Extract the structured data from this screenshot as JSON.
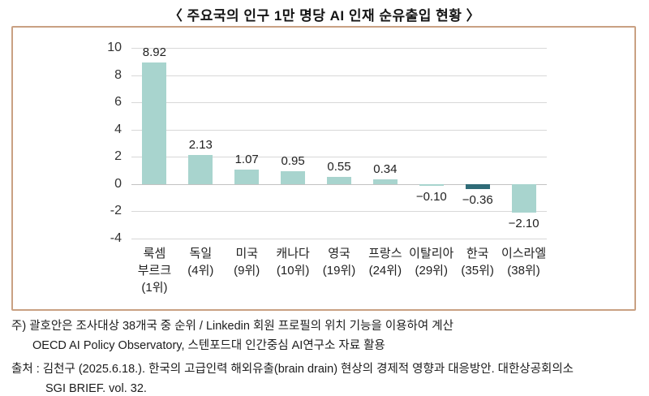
{
  "title": "〈 주요국의 인구 1만 명당 AI 인재 순유출입 현황 〉",
  "chart_data": {
    "type": "bar",
    "title": "주요국의 인구 1만 명당 AI 인재 순유출입 현황",
    "categories": [
      {
        "name": "룩셈부르크",
        "rank": "(1위)",
        "lines": [
          "룩셈",
          "부르크",
          "(1위)"
        ]
      },
      {
        "name": "독일",
        "rank": "(4위)",
        "lines": [
          "독일",
          "(4위)"
        ]
      },
      {
        "name": "미국",
        "rank": "(9위)",
        "lines": [
          "미국",
          "(9위)"
        ]
      },
      {
        "name": "캐나다",
        "rank": "(10위)",
        "lines": [
          "캐나다",
          "(10위)"
        ]
      },
      {
        "name": "영국",
        "rank": "(19위)",
        "lines": [
          "영국",
          "(19위)"
        ]
      },
      {
        "name": "프랑스",
        "rank": "(24위)",
        "lines": [
          "프랑스",
          "(24위)"
        ]
      },
      {
        "name": "이탈리아",
        "rank": "(29위)",
        "lines": [
          "이탈리아",
          "(29위)"
        ]
      },
      {
        "name": "한국",
        "rank": "(35위)",
        "lines": [
          "한국",
          "(35위)"
        ]
      },
      {
        "name": "이스라엘",
        "rank": "(38위)",
        "lines": [
          "이스라엘",
          "(38위)"
        ]
      }
    ],
    "values": [
      8.92,
      2.13,
      1.07,
      0.95,
      0.55,
      0.34,
      -0.1,
      -0.36,
      -2.1
    ],
    "value_labels": [
      "8.92",
      "2.13",
      "1.07",
      "0.95",
      "0.55",
      "0.34",
      "−0.10",
      "−0.36",
      "−2.10"
    ],
    "highlight_index": 7,
    "bar_color": "#a8d4ce",
    "highlight_color": "#2f6b77",
    "y_ticks": [
      10,
      8,
      6,
      4,
      2,
      0,
      -2,
      -4
    ],
    "ylim": [
      -4,
      10
    ],
    "grid": true,
    "legend": "none",
    "xlabel": "",
    "ylabel": ""
  },
  "footnotes": {
    "note_line1": "주) 괄호안은 조사대상 38개국 중 순위 / Linkedin 회원 프로필의 위치 기능을 이용하여 계산",
    "note_line2": "OECD AI Policy Observatory, 스텐포드대 인간중심 AI연구소 자료 활용",
    "source_line1": "출처 : 김천구 (2025.6.18.). 한국의 고급인력 해외유출(brain drain) 현상의 경제적 영향과 대응방안. 대한상공회의소",
    "source_line2": "SGI BRIEF. vol. 32."
  },
  "colors": {
    "box_border": "#c9a183",
    "gridline": "#d8d8d8",
    "bar_light_teal": "#a8d4ce",
    "bar_dark_teal": "#2f6b77"
  }
}
